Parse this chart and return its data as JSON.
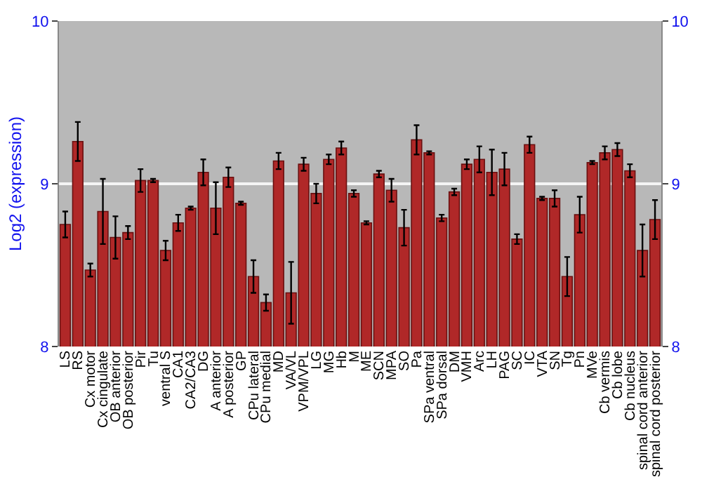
{
  "chart_data": {
    "type": "bar",
    "ylabel": "Log2 (expression)",
    "categories": [
      "LS",
      "RS",
      "Cx motor",
      "Cx cingulate",
      "OB anterior",
      "OB posterior",
      "Pir",
      "Tu",
      "ventral S",
      "CA1",
      "CA2/CA3",
      "DG",
      "A anterior",
      "A posterior",
      "GP",
      "CPu lateral",
      "CPu medial",
      "MD",
      "VA/VL",
      "VPM/VPL",
      "LG",
      "MG",
      "Hb",
      "M",
      "ME",
      "SCN",
      "MPA",
      "SO",
      "Pa",
      "SPa ventral",
      "SPa dorsal",
      "DM",
      "VMH",
      "Arc",
      "LH",
      "PAG",
      "SC",
      "IC",
      "VTA",
      "SN",
      "Tg",
      "Pn",
      "MVe",
      "Cb vermis",
      "Cb lobe",
      "Cb nucleus",
      "spinal cord anterior",
      "spinal cord posterior"
    ],
    "values": [
      8.75,
      9.26,
      8.47,
      8.83,
      8.67,
      8.7,
      9.02,
      9.02,
      8.59,
      8.76,
      8.85,
      9.07,
      8.85,
      9.04,
      8.88,
      8.43,
      8.27,
      9.14,
      8.33,
      9.12,
      8.94,
      9.15,
      9.22,
      8.94,
      8.76,
      9.06,
      8.96,
      8.73,
      9.27,
      9.19,
      8.79,
      8.95,
      9.12,
      9.15,
      9.07,
      9.09,
      8.66,
      9.24,
      8.91,
      8.91,
      8.43,
      8.81,
      9.13,
      9.19,
      9.21,
      9.08,
      8.59,
      8.78
    ],
    "errors": [
      0.08,
      0.12,
      0.04,
      0.2,
      0.13,
      0.04,
      0.07,
      0.01,
      0.06,
      0.05,
      0.01,
      0.08,
      0.16,
      0.06,
      0.01,
      0.1,
      0.05,
      0.05,
      0.19,
      0.04,
      0.06,
      0.03,
      0.04,
      0.02,
      0.01,
      0.02,
      0.07,
      0.11,
      0.09,
      0.01,
      0.02,
      0.02,
      0.03,
      0.08,
      0.14,
      0.1,
      0.03,
      0.05,
      0.01,
      0.05,
      0.12,
      0.11,
      0.01,
      0.04,
      0.04,
      0.04,
      0.16,
      0.12
    ],
    "color": "#b02828",
    "ylim": [
      8,
      10
    ],
    "yticks": [
      8,
      9,
      10
    ],
    "y2lim": [
      8,
      10
    ],
    "y2ticks": [
      8,
      9,
      10
    ],
    "grid": "y"
  }
}
